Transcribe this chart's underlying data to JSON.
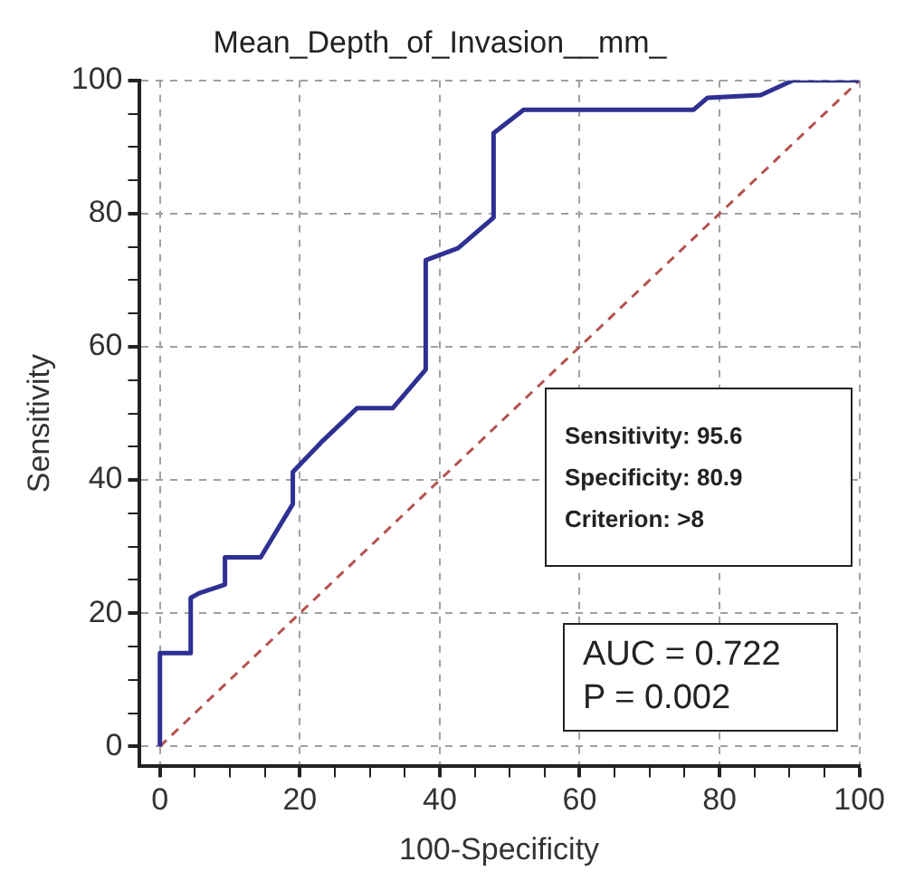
{
  "chart_data": {
    "type": "line",
    "title": "Mean_Depth_of_Invasion__mm_",
    "xlabel": "100-Specificity",
    "ylabel": "Sensitivity",
    "xlim": [
      -3,
      100
    ],
    "ylim": [
      -3,
      100
    ],
    "xticks": [
      0,
      {
        "value": 5,
        "label": null
      },
      {
        "value": 10,
        "label": null
      },
      {
        "value": 15,
        "label": null
      },
      20,
      {
        "value": 25,
        "label": null
      },
      {
        "value": 30,
        "label": null
      },
      {
        "value": 35,
        "label": null
      },
      40,
      {
        "value": 45,
        "label": null
      },
      {
        "value": 50,
        "label": null
      },
      {
        "value": 55,
        "label": null
      },
      60,
      {
        "value": 65,
        "label": null
      },
      {
        "value": 70,
        "label": null
      },
      {
        "value": 75,
        "label": null
      },
      80,
      {
        "value": 85,
        "label": null
      },
      {
        "value": 90,
        "label": null
      },
      {
        "value": 95,
        "label": null
      },
      100
    ],
    "yticks": [
      0,
      {
        "value": 5,
        "label": null
      },
      {
        "value": 10,
        "label": null
      },
      {
        "value": 15,
        "label": null
      },
      20,
      {
        "value": 25,
        "label": null
      },
      {
        "value": 30,
        "label": null
      },
      {
        "value": 35,
        "label": null
      },
      40,
      {
        "value": 45,
        "label": null
      },
      {
        "value": 50,
        "label": null
      },
      {
        "value": 55,
        "label": null
      },
      60,
      {
        "value": 65,
        "label": null
      },
      {
        "value": 70,
        "label": null
      },
      {
        "value": 75,
        "label": null
      },
      80,
      {
        "value": 85,
        "label": null
      },
      {
        "value": 90,
        "label": null
      },
      {
        "value": 95,
        "label": null
      },
      100
    ],
    "grid": true,
    "line_style": "solid",
    "marker": "none",
    "series": [
      {
        "color": "#2e3192",
        "x": [
          0,
          0,
          4.4,
          4.4,
          5.6,
          9.3,
          9.3,
          14.4,
          19,
          19,
          23,
          28.2,
          33.3,
          38,
          38,
          42.6,
          47.7,
          47.7,
          52,
          76.3,
          78.3,
          85.9,
          90.5,
          100
        ],
        "values": [
          0,
          14,
          14,
          22.3,
          23,
          24.3,
          28.4,
          28.4,
          36.4,
          41.2,
          45.6,
          50.8,
          50.8,
          56.6,
          73,
          74.8,
          79.4,
          92.1,
          95.6,
          95.6,
          97.4,
          97.8,
          100,
          100
        ]
      },
      {
        "color": "#b5524f",
        "line_style": "dashed",
        "x": [
          0,
          100
        ],
        "values": [
          0,
          100
        ]
      }
    ],
    "annotations": [
      "Sensitivity: 95.6",
      "Specificity: 80.9",
      "Criterion: >8",
      "AUC = 0.722",
      "P = 0.002"
    ]
  }
}
